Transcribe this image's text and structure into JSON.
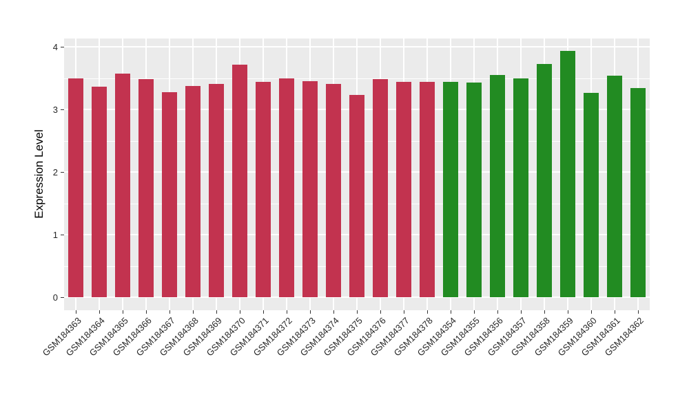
{
  "chart_data": {
    "type": "bar",
    "title": "",
    "xlabel": "",
    "ylabel": "Expression Level",
    "yticks": [
      "0",
      "1",
      "2",
      "3",
      "4"
    ],
    "ylim": [
      0,
      4.13
    ],
    "grid": "ggplot gray panel, white major+minor gridlines, no legend",
    "legend_position": "none",
    "panel_background": "#EBEBEB",
    "gridline_color": "#FFFFFF",
    "axis_text_color": "#262626",
    "categories": [
      "GSM184363",
      "GSM184364",
      "GSM184365",
      "GSM184366",
      "GSM184367",
      "GSM184368",
      "GSM184369",
      "GSM184370",
      "GSM184371",
      "GSM184372",
      "GSM184373",
      "GSM184374",
      "GSM184375",
      "GSM184376",
      "GSM184377",
      "GSM184378",
      "GSM184354",
      "GSM184355",
      "GSM184356",
      "GSM184357",
      "GSM184358",
      "GSM184359",
      "GSM184360",
      "GSM184361",
      "GSM184362"
    ],
    "values": [
      3.49,
      3.36,
      3.57,
      3.48,
      3.27,
      3.37,
      3.41,
      3.71,
      3.44,
      3.49,
      3.45,
      3.41,
      3.23,
      3.48,
      3.44,
      3.44,
      3.44,
      3.43,
      3.55,
      3.5,
      3.72,
      3.93,
      3.26,
      3.54,
      3.34
    ],
    "bar_color_keys": [
      "red",
      "red",
      "red",
      "red",
      "red",
      "red",
      "red",
      "red",
      "red",
      "red",
      "red",
      "red",
      "red",
      "red",
      "red",
      "red",
      "green",
      "green",
      "green",
      "green",
      "green",
      "green",
      "green",
      "green",
      "green"
    ],
    "colors": {
      "red": "#C2334F",
      "green": "#228B22"
    },
    "groups": [
      {
        "name": "group-red",
        "color": "#C2334F",
        "first": "GSM184363",
        "last": "GSM184378",
        "count": 16
      },
      {
        "name": "group-green",
        "color": "#228B22",
        "first": "GSM184354",
        "last": "GSM184362",
        "count": 9
      }
    ]
  }
}
